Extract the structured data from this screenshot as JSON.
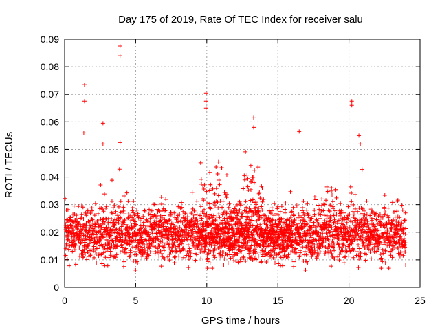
{
  "chart_data": {
    "type": "scatter",
    "title": "Day 175 of 2019, Rate Of TEC Index for receiver salu",
    "xlabel": "GPS time / hours",
    "ylabel": "ROTI / TECUs",
    "xlim": [
      0,
      25
    ],
    "ylim": [
      0,
      0.09
    ],
    "xticks": [
      "0",
      "5",
      "10",
      "15",
      "20",
      "25"
    ],
    "yticks": [
      "0",
      "0.01",
      "0.02",
      "0.03",
      "0.04",
      "0.05",
      "0.06",
      "0.07",
      "0.08",
      "0.09"
    ],
    "grid": true,
    "marker": "+",
    "color": "#ff0000",
    "series": [
      {
        "name": "ROTI",
        "note": "dense cloud of ~5000 points, ROTI mostly 0.01-0.03 TECU, spikes as listed",
        "x": [
          0.1,
          0.3,
          0.5,
          0.7,
          0.9,
          1.1,
          1.3,
          1.4,
          1.45,
          1.5,
          1.7,
          1.9,
          2.1,
          2.3,
          2.5,
          2.6,
          2.7,
          2.8,
          2.9,
          3.0,
          3.2,
          3.4,
          3.6,
          3.8,
          3.9,
          3.95,
          4.0,
          4.1,
          4.3,
          4.5,
          4.7,
          4.9,
          5.1,
          5.3,
          5.5,
          5.6,
          5.7,
          5.9,
          6.1,
          6.3,
          6.5,
          6.7,
          6.9,
          7.0,
          7.2,
          7.4,
          7.6,
          7.8,
          8.0,
          8.2,
          8.4,
          8.6,
          8.8,
          9.0,
          9.2,
          9.4,
          9.6,
          9.7,
          9.8,
          9.9,
          10.0,
          10.1,
          10.3,
          10.5,
          10.7,
          10.9,
          11.1,
          11.3,
          11.5,
          11.7,
          11.9,
          12.1,
          12.3,
          12.5,
          12.7,
          12.9,
          13.0,
          13.1,
          13.2,
          13.3,
          13.5,
          13.7,
          13.9,
          14.1,
          14.3,
          14.5,
          14.7,
          14.9,
          15.1,
          15.3,
          15.5,
          15.7,
          15.9,
          16.1,
          16.3,
          16.5,
          16.7,
          16.9,
          17.1,
          17.3,
          17.5,
          17.7,
          17.9,
          18.1,
          18.3,
          18.5,
          18.7,
          18.9,
          19.1,
          19.3,
          19.5,
          19.7,
          19.9,
          20.1,
          20.2,
          20.3,
          20.5,
          20.7,
          20.9,
          21.1,
          21.3,
          21.5,
          21.7,
          21.9,
          22.1,
          22.3,
          22.5,
          22.7,
          22.9,
          23.1,
          23.3,
          23.5,
          23.7,
          23.9
        ],
        "spikes": [
          {
            "x": 1.4,
            "y": 0.0735
          },
          {
            "x": 1.4,
            "y": 0.0675
          },
          {
            "x": 1.35,
            "y": 0.056
          },
          {
            "x": 2.7,
            "y": 0.0595
          },
          {
            "x": 2.7,
            "y": 0.052
          },
          {
            "x": 3.9,
            "y": 0.0875
          },
          {
            "x": 3.9,
            "y": 0.084
          },
          {
            "x": 3.9,
            "y": 0.0525
          },
          {
            "x": 9.95,
            "y": 0.0705
          },
          {
            "x": 9.95,
            "y": 0.0675
          },
          {
            "x": 9.95,
            "y": 0.065
          },
          {
            "x": 13.3,
            "y": 0.0615
          },
          {
            "x": 13.3,
            "y": 0.058
          },
          {
            "x": 16.5,
            "y": 0.0565
          },
          {
            "x": 20.2,
            "y": 0.0675
          },
          {
            "x": 20.2,
            "y": 0.066
          },
          {
            "x": 20.7,
            "y": 0.055
          },
          {
            "x": 20.8,
            "y": 0.052
          }
        ]
      }
    ]
  }
}
